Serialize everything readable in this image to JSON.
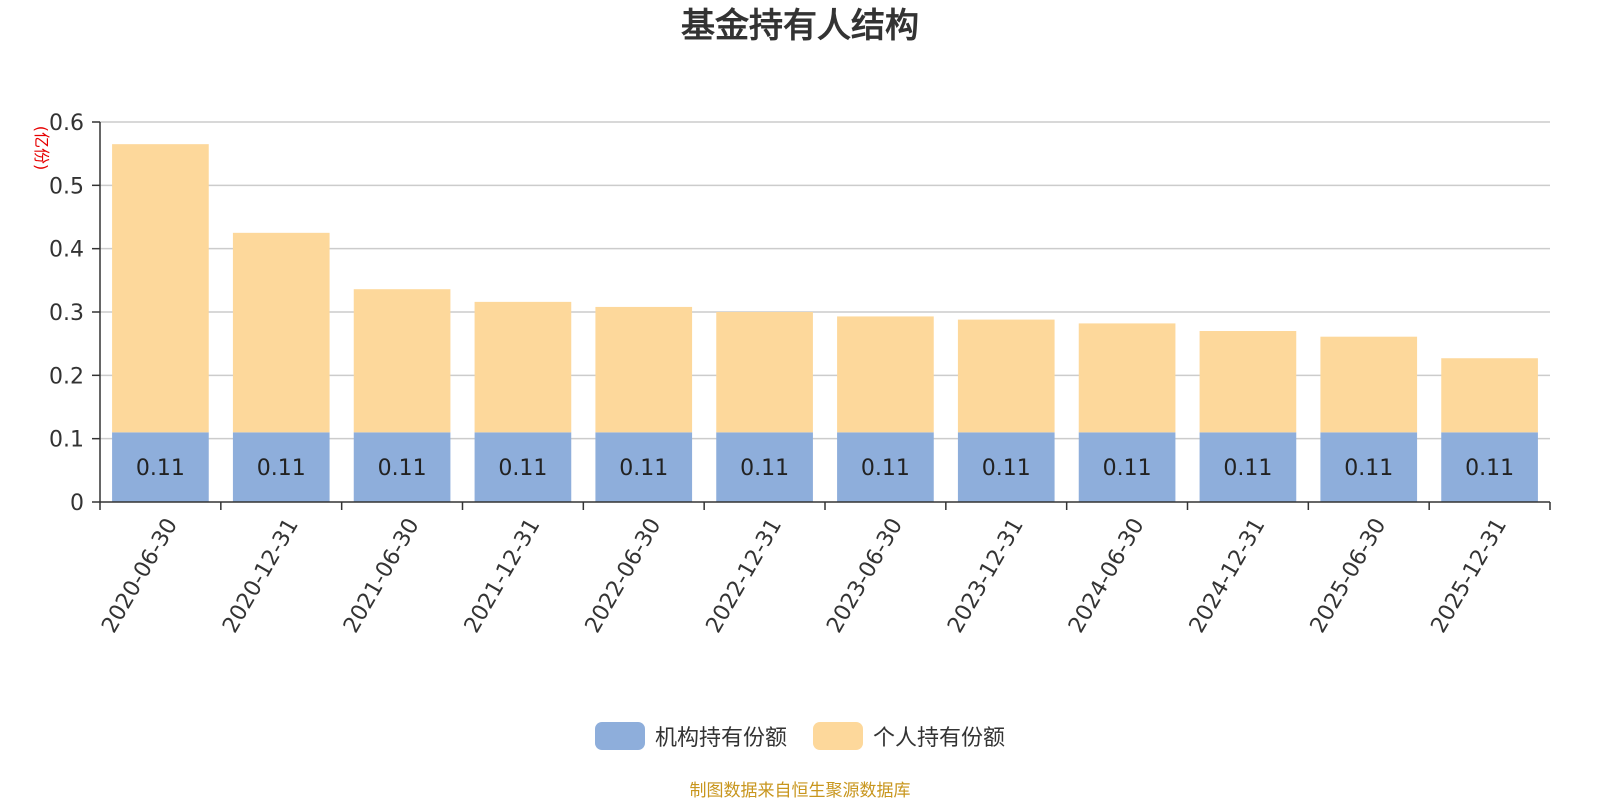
{
  "chart_data": {
    "type": "bar",
    "stacked": true,
    "title": "基金持有人结构",
    "unit_label": "(亿份)",
    "categories": [
      "2020-06-30",
      "2020-12-31",
      "2021-06-30",
      "2021-12-31",
      "2022-06-30",
      "2022-12-31",
      "2023-06-30",
      "2023-12-31",
      "2024-06-30",
      "2024-12-31",
      "2025-06-30",
      "2025-12-31"
    ],
    "series": [
      {
        "name": "机构持有份额",
        "color": "#8eaedb",
        "values": [
          0.11,
          0.11,
          0.11,
          0.11,
          0.11,
          0.11,
          0.11,
          0.11,
          0.11,
          0.11,
          0.11,
          0.11
        ],
        "labels": [
          "0.11",
          "0.11",
          "0.11",
          "0.11",
          "0.11",
          "0.11",
          "0.11",
          "0.11",
          "0.11",
          "0.11",
          "0.11",
          "0.11"
        ]
      },
      {
        "name": "个人持有份额",
        "color": "#fdd89b",
        "values": [
          0.455,
          0.315,
          0.226,
          0.206,
          0.198,
          0.19,
          0.183,
          0.178,
          0.172,
          0.16,
          0.151,
          0.117
        ]
      }
    ],
    "yticks": [
      "0",
      "0.1",
      "0.2",
      "0.3",
      "0.4",
      "0.5",
      "0.6"
    ],
    "ylim": [
      0,
      0.6
    ],
    "grid": true,
    "legend_position": "bottom-center"
  },
  "source_note": "制图数据来自恒生聚源数据库",
  "colors": {
    "axis": "#333333",
    "grid": "#cccccc",
    "unit_label": "#e60000",
    "source_note": "#c8961e"
  }
}
